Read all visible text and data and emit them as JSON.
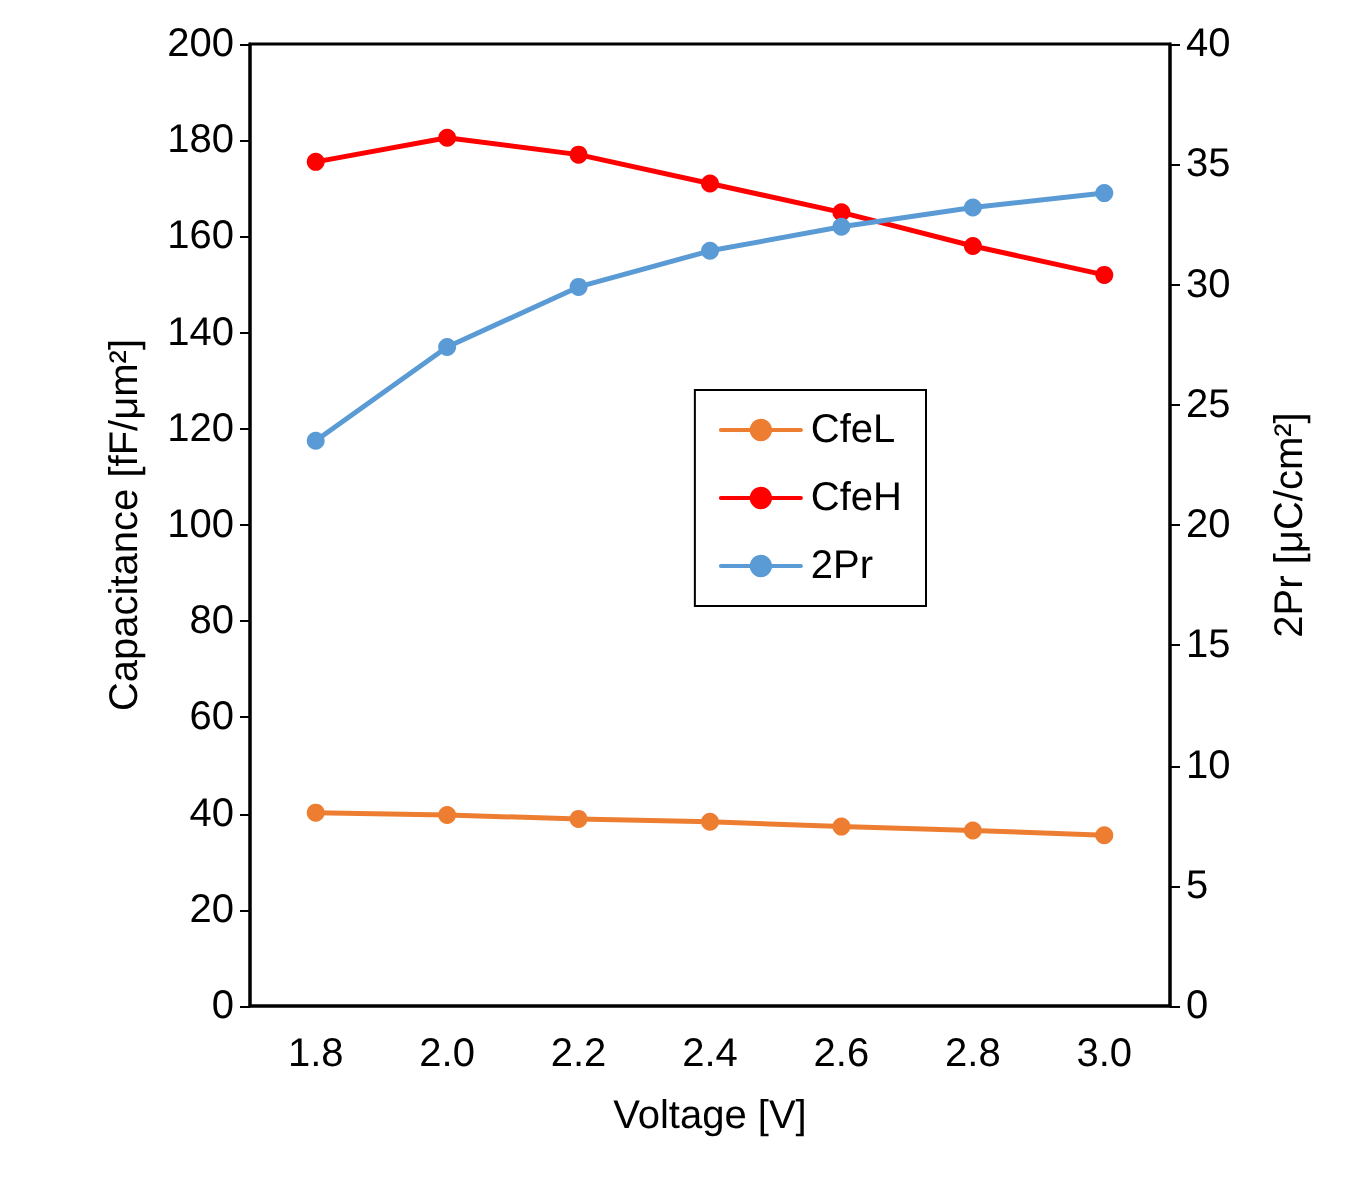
{
  "chart_data": {
    "type": "line",
    "xlabel": "Voltage [V]",
    "ylabel": "Capacitance [fF/μm²]",
    "y2label": "2Pr [μC/cm²]",
    "categories": [
      "1.8",
      "2.0",
      "2.2",
      "2.4",
      "2.6",
      "2.8",
      "3.0"
    ],
    "series": [
      {
        "name": "CfeL",
        "color": "#ed7d31",
        "values": [
          40.2,
          39.7,
          38.9,
          38.3,
          37.3,
          36.5,
          35.5
        ]
      },
      {
        "name": "CfeH",
        "color": "#ff0000",
        "values": [
          175.5,
          180.5,
          177,
          171,
          165,
          158,
          152
        ]
      },
      {
        "name": "2Pr",
        "color": "#5b9bd5",
        "axis": "y2",
        "values": [
          23.5,
          27.4,
          29.9,
          31.4,
          32.4,
          33.2,
          33.8
        ]
      }
    ],
    "ylim": [
      0,
      200
    ],
    "yticks": [
      0,
      20,
      40,
      60,
      80,
      100,
      120,
      140,
      160,
      180,
      200
    ],
    "y2lim": [
      0,
      40
    ],
    "y2ticks": [
      0,
      5,
      10,
      15,
      20,
      25,
      30,
      35,
      40
    ],
    "grid": false,
    "legend": "right",
    "marker": "circle",
    "line_style": "solid"
  }
}
